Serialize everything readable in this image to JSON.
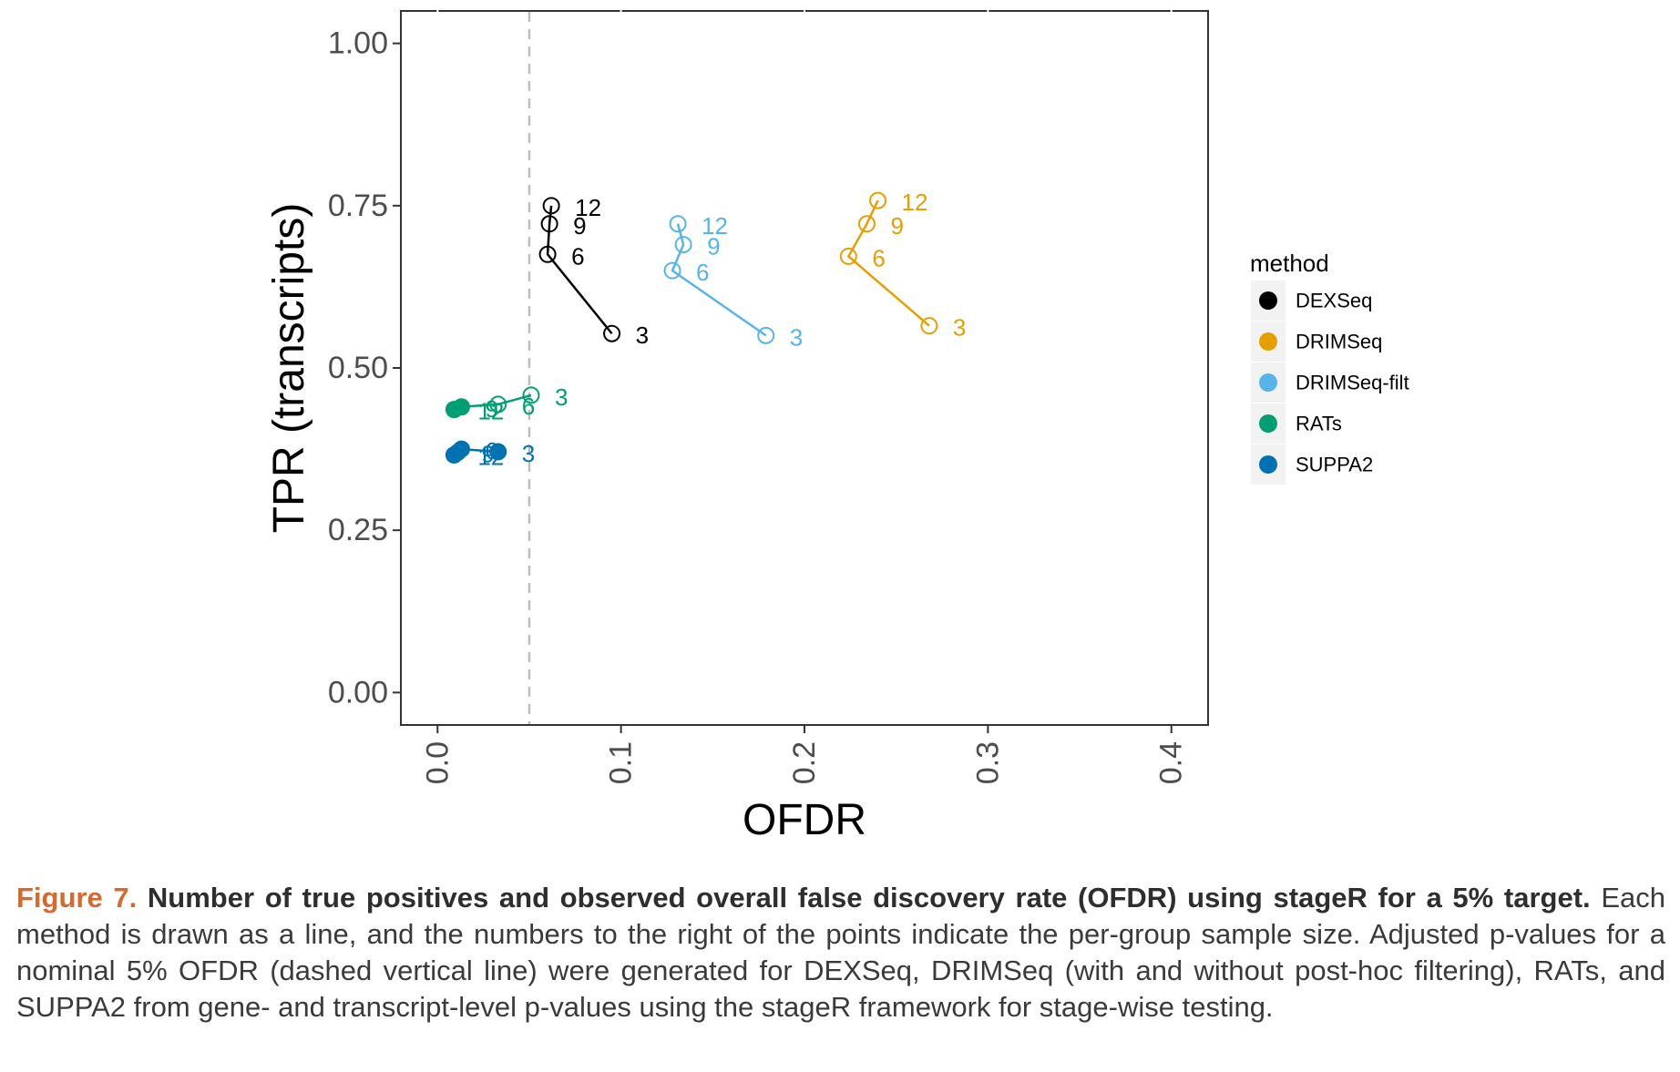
{
  "chart_data": {
    "type": "line",
    "xlabel": "OFDR",
    "ylabel": "TPR (transcripts)",
    "xlim": [
      -0.02,
      0.42
    ],
    "ylim": [
      -0.05,
      1.05
    ],
    "x_ticks": [
      0.0,
      0.1,
      0.2,
      0.3,
      0.4
    ],
    "x_tick_labels": [
      "0.0",
      "0.1",
      "0.2",
      "0.3",
      "0.4"
    ],
    "y_ticks": [
      0.0,
      0.25,
      0.5,
      0.75,
      1.0
    ],
    "y_tick_labels": [
      "0.00",
      "0.25",
      "0.50",
      "0.75",
      "1.00"
    ],
    "grid": false,
    "reference_line": {
      "x": 0.05,
      "style": "dashed",
      "color": "#bdbdbd"
    },
    "legend": {
      "title": "method",
      "position": "right",
      "entries": [
        "DEXSeq",
        "DRIMSeq",
        "DRIMSeq-filt",
        "RATs",
        "SUPPA2"
      ]
    },
    "series": [
      {
        "name": "DEXSeq",
        "color": "#000000",
        "points": [
          {
            "x": 0.095,
            "y": 0.553,
            "label": "3",
            "filled": false
          },
          {
            "x": 0.06,
            "y": 0.675,
            "label": "6",
            "filled": false
          },
          {
            "x": 0.061,
            "y": 0.722,
            "label": "9",
            "filled": false
          },
          {
            "x": 0.062,
            "y": 0.75,
            "label": "12",
            "filled": false
          }
        ]
      },
      {
        "name": "DRIMSeq",
        "color": "#E69F00",
        "points": [
          {
            "x": 0.268,
            "y": 0.565,
            "label": "3",
            "filled": false
          },
          {
            "x": 0.224,
            "y": 0.672,
            "label": "6",
            "filled": false
          },
          {
            "x": 0.234,
            "y": 0.722,
            "label": "9",
            "filled": false
          },
          {
            "x": 0.24,
            "y": 0.758,
            "label": "12",
            "filled": false
          }
        ]
      },
      {
        "name": "DRIMSeq-filt",
        "color": "#56B4E9",
        "points": [
          {
            "x": 0.179,
            "y": 0.55,
            "label": "3",
            "filled": false
          },
          {
            "x": 0.128,
            "y": 0.65,
            "label": "6",
            "filled": false
          },
          {
            "x": 0.134,
            "y": 0.69,
            "label": "9",
            "filled": false
          },
          {
            "x": 0.131,
            "y": 0.722,
            "label": "12",
            "filled": false
          }
        ]
      },
      {
        "name": "RATs",
        "color": "#009E73",
        "points": [
          {
            "x": 0.051,
            "y": 0.458,
            "label": "3",
            "filled": false
          },
          {
            "x": 0.033,
            "y": 0.444,
            "label": "6",
            "filled": false
          },
          {
            "x": 0.013,
            "y": 0.44,
            "label": "9",
            "filled": true
          },
          {
            "x": 0.009,
            "y": 0.436,
            "label": "12",
            "filled": true
          }
        ]
      },
      {
        "name": "SUPPA2",
        "color": "#0072B2",
        "points": [
          {
            "x": 0.033,
            "y": 0.371,
            "label": "3",
            "filled": true
          },
          {
            "x": 0.013,
            "y": 0.375,
            "label": "6",
            "filled": true
          },
          {
            "x": 0.011,
            "y": 0.37,
            "label": "9",
            "filled": true
          },
          {
            "x": 0.009,
            "y": 0.366,
            "label": "12",
            "filled": true
          }
        ]
      }
    ]
  },
  "caption": {
    "label": "Figure 7.",
    "title": "Number of true positives and observed overall false discovery rate (OFDR) using stageR for a 5% target.",
    "body": "Each method is drawn as a line, and the numbers to the right of the points indicate the per-group sample size. Adjusted p-values for a nominal 5% OFDR (dashed vertical line) were generated for DEXSeq, DRIMSeq (with and without post-hoc filtering), RATs, and SUPPA2 from gene- and transcript-level p-values using the stageR framework for stage-wise testing."
  }
}
